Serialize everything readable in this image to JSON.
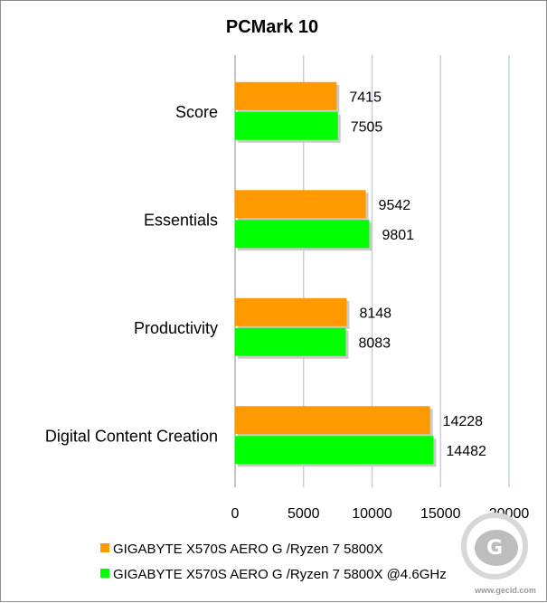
{
  "chart_data": {
    "type": "bar",
    "orientation": "horizontal",
    "title": "PCMark 10",
    "categories": [
      "Score",
      "Essentials",
      "Productivity",
      "Digital Content Creation"
    ],
    "series": [
      {
        "name": "GIGABYTE X570S AERO G /Ryzen 7 5800X",
        "color": "#ff9900",
        "values": [
          7415,
          9542,
          8148,
          14228
        ]
      },
      {
        "name": "GIGABYTE X570S AERO G /Ryzen 7 5800X @4.6GHz",
        "color": "#00ff00",
        "values": [
          7505,
          9801,
          8083,
          14482
        ]
      }
    ],
    "xlim": [
      0,
      20000
    ],
    "xticks": [
      0,
      5000,
      10000,
      15000,
      20000
    ],
    "grid": "vertical",
    "legend_position": "bottom",
    "xlabel": "",
    "ylabel": ""
  },
  "watermark": {
    "name": "gecid-logo",
    "text": "www.gecid.com"
  }
}
